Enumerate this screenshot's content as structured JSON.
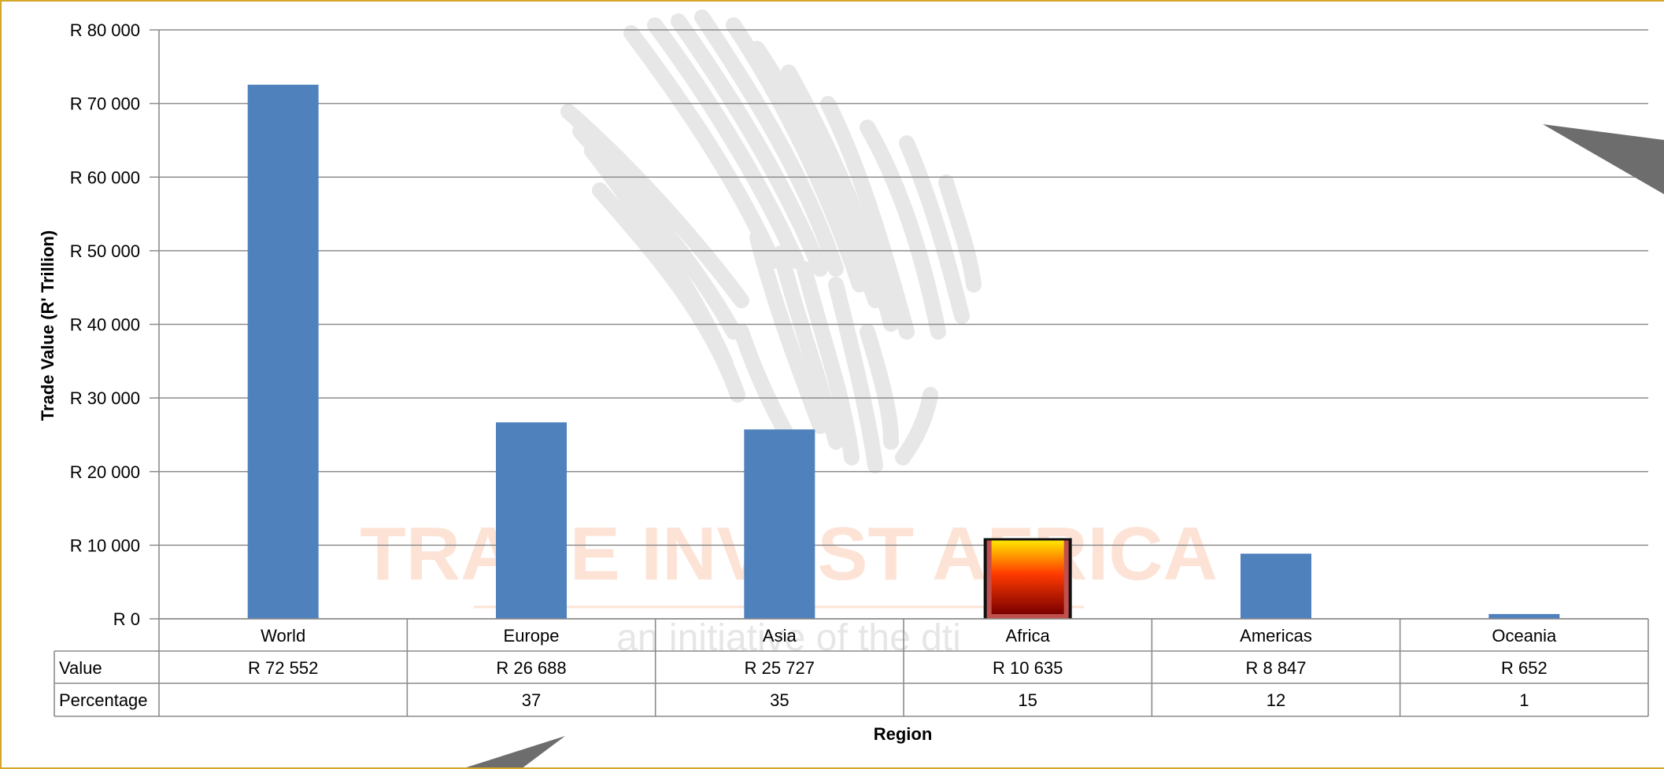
{
  "chart_data": {
    "type": "bar",
    "ylabel": "Trade Value (R' Trillion)",
    "xlabel": "Region",
    "ylim": [
      0,
      80000
    ],
    "ytick_step": 10000,
    "ytick_labels": [
      "R 0",
      "R 10 000",
      "R 20 000",
      "R 30 000",
      "R 40 000",
      "R 50 000",
      "R 60 000",
      "R 70 000",
      "R 80 000"
    ],
    "grid": true,
    "legend": "none",
    "categories": [
      "World",
      "Europe",
      "Asia",
      "Africa",
      "Americas",
      "Oceania"
    ],
    "values": [
      72552,
      26688,
      25727,
      10635,
      8847,
      652
    ],
    "highlighted_category": "Africa",
    "bar_color": "#4f81bd",
    "highlight_gradient": [
      "#ffe600",
      "#ff3300",
      "#7a0000"
    ],
    "data_table": {
      "rows": [
        {
          "label": "Value",
          "cells": [
            "R 72 552",
            "R 26 688",
            "R 25 727",
            "R 10 635",
            "R 8 847",
            "R 652"
          ]
        },
        {
          "label": "Percentage",
          "cells": [
            "",
            "37",
            "35",
            "15",
            "12",
            "1"
          ]
        }
      ]
    }
  },
  "watermark": {
    "brand": "TRADE INVEST AFRICA",
    "tagline": "an initiative of the dti"
  }
}
